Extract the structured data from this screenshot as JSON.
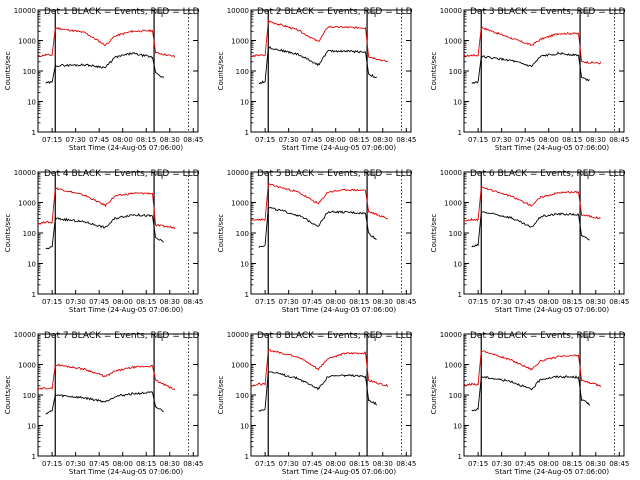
{
  "chart_data": {
    "type": "line",
    "ylabel": "Counts/sec",
    "xlabel": "Start Time (24-Aug-05 07:06:00)",
    "x_ticks": [
      "07:15",
      "07:30",
      "07:45",
      "08:00",
      "08:15",
      "08:30",
      "08:45"
    ],
    "y_scale": "log",
    "ylim": [
      1,
      10000
    ],
    "y_ticks": [
      "1",
      "10",
      "100",
      "1000",
      "10000"
    ],
    "series_colors": {
      "black": "#000000",
      "red": "#e00000"
    },
    "panels": [
      {
        "title": "Det 1  BLACK = Events, RED = LLD",
        "red": [
          [
            0,
            300
          ],
          [
            5,
            340
          ],
          [
            9,
            330
          ],
          [
            11,
            2600
          ],
          [
            30,
            1800
          ],
          [
            43,
            700
          ],
          [
            49,
            1400
          ],
          [
            60,
            2000
          ],
          [
            73,
            2100
          ],
          [
            75,
            400
          ],
          [
            87,
            300
          ]
        ],
        "black": [
          [
            5,
            40
          ],
          [
            9,
            43
          ],
          [
            11,
            150
          ],
          [
            30,
            160
          ],
          [
            43,
            130
          ],
          [
            49,
            280
          ],
          [
            60,
            380
          ],
          [
            73,
            280
          ],
          [
            75,
            90
          ],
          [
            80,
            60
          ]
        ]
      },
      {
        "title": "Det 2  BLACK = Events, RED = LLD",
        "red": [
          [
            0,
            300
          ],
          [
            5,
            330
          ],
          [
            9,
            320
          ],
          [
            11,
            4300
          ],
          [
            30,
            2200
          ],
          [
            43,
            900
          ],
          [
            49,
            2800
          ],
          [
            60,
            2700
          ],
          [
            73,
            2600
          ],
          [
            75,
            300
          ],
          [
            87,
            200
          ]
        ],
        "black": [
          [
            5,
            40
          ],
          [
            9,
            45
          ],
          [
            11,
            600
          ],
          [
            30,
            350
          ],
          [
            43,
            160
          ],
          [
            49,
            450
          ],
          [
            60,
            450
          ],
          [
            73,
            420
          ],
          [
            75,
            80
          ],
          [
            80,
            60
          ]
        ]
      },
      {
        "title": "Det 3  BLACK = Events, RED = LLD",
        "red": [
          [
            0,
            300
          ],
          [
            5,
            330
          ],
          [
            9,
            320
          ],
          [
            11,
            2700
          ],
          [
            30,
            1200
          ],
          [
            43,
            700
          ],
          [
            49,
            1100
          ],
          [
            60,
            1700
          ],
          [
            73,
            1700
          ],
          [
            75,
            200
          ],
          [
            87,
            180
          ]
        ],
        "black": [
          [
            5,
            40
          ],
          [
            9,
            45
          ],
          [
            11,
            300
          ],
          [
            30,
            220
          ],
          [
            43,
            140
          ],
          [
            49,
            300
          ],
          [
            60,
            380
          ],
          [
            73,
            330
          ],
          [
            75,
            60
          ],
          [
            80,
            50
          ]
        ]
      },
      {
        "title": "Det 4  BLACK = Events, RED = LLD",
        "red": [
          [
            0,
            200
          ],
          [
            5,
            230
          ],
          [
            9,
            220
          ],
          [
            11,
            3000
          ],
          [
            30,
            1700
          ],
          [
            43,
            800
          ],
          [
            49,
            1600
          ],
          [
            60,
            2000
          ],
          [
            73,
            2000
          ],
          [
            75,
            180
          ],
          [
            87,
            150
          ]
        ],
        "black": [
          [
            5,
            30
          ],
          [
            9,
            35
          ],
          [
            11,
            300
          ],
          [
            30,
            230
          ],
          [
            43,
            150
          ],
          [
            49,
            300
          ],
          [
            60,
            400
          ],
          [
            73,
            360
          ],
          [
            75,
            70
          ],
          [
            80,
            50
          ]
        ]
      },
      {
        "title": "Det 5  BLACK = Events, RED = LLD",
        "red": [
          [
            0,
            250
          ],
          [
            5,
            280
          ],
          [
            9,
            270
          ],
          [
            11,
            4000
          ],
          [
            30,
            2200
          ],
          [
            43,
            900
          ],
          [
            49,
            2200
          ],
          [
            60,
            2600
          ],
          [
            73,
            2500
          ],
          [
            75,
            500
          ],
          [
            87,
            300
          ]
        ],
        "black": [
          [
            5,
            35
          ],
          [
            9,
            40
          ],
          [
            11,
            700
          ],
          [
            30,
            380
          ],
          [
            43,
            170
          ],
          [
            49,
            500
          ],
          [
            60,
            480
          ],
          [
            73,
            440
          ],
          [
            75,
            100
          ],
          [
            80,
            60
          ]
        ]
      },
      {
        "title": "Det 6  BLACK = Events, RED = LLD",
        "red": [
          [
            0,
            250
          ],
          [
            5,
            280
          ],
          [
            9,
            270
          ],
          [
            11,
            3200
          ],
          [
            30,
            1600
          ],
          [
            43,
            800
          ],
          [
            49,
            1500
          ],
          [
            60,
            2100
          ],
          [
            73,
            2200
          ],
          [
            75,
            400
          ],
          [
            87,
            300
          ]
        ],
        "black": [
          [
            5,
            35
          ],
          [
            9,
            40
          ],
          [
            11,
            500
          ],
          [
            30,
            320
          ],
          [
            43,
            150
          ],
          [
            49,
            350
          ],
          [
            60,
            420
          ],
          [
            73,
            400
          ],
          [
            75,
            80
          ],
          [
            80,
            60
          ]
        ]
      },
      {
        "title": "Det 7  BLACK = Events, RED = LLD",
        "red": [
          [
            0,
            150
          ],
          [
            5,
            170
          ],
          [
            9,
            160
          ],
          [
            11,
            1000
          ],
          [
            30,
            700
          ],
          [
            43,
            400
          ],
          [
            49,
            600
          ],
          [
            60,
            800
          ],
          [
            73,
            900
          ],
          [
            75,
            300
          ],
          [
            87,
            150
          ]
        ],
        "black": [
          [
            5,
            25
          ],
          [
            9,
            30
          ],
          [
            11,
            100
          ],
          [
            30,
            80
          ],
          [
            43,
            60
          ],
          [
            49,
            90
          ],
          [
            60,
            110
          ],
          [
            73,
            120
          ],
          [
            75,
            40
          ],
          [
            80,
            30
          ]
        ]
      },
      {
        "title": "Det 8  BLACK = Events, RED = LLD",
        "red": [
          [
            0,
            200
          ],
          [
            5,
            230
          ],
          [
            9,
            220
          ],
          [
            11,
            3000
          ],
          [
            30,
            1800
          ],
          [
            43,
            700
          ],
          [
            49,
            1600
          ],
          [
            60,
            2300
          ],
          [
            73,
            2400
          ],
          [
            75,
            300
          ],
          [
            87,
            200
          ]
        ],
        "black": [
          [
            5,
            30
          ],
          [
            9,
            35
          ],
          [
            11,
            600
          ],
          [
            30,
            350
          ],
          [
            43,
            160
          ],
          [
            49,
            400
          ],
          [
            60,
            440
          ],
          [
            73,
            400
          ],
          [
            75,
            70
          ],
          [
            80,
            50
          ]
        ]
      },
      {
        "title": "Det 9  BLACK = Events, RED = LLD",
        "red": [
          [
            0,
            200
          ],
          [
            5,
            230
          ],
          [
            9,
            220
          ],
          [
            11,
            2900
          ],
          [
            30,
            1400
          ],
          [
            43,
            700
          ],
          [
            49,
            1300
          ],
          [
            60,
            1800
          ],
          [
            73,
            2000
          ],
          [
            75,
            300
          ],
          [
            87,
            200
          ]
        ],
        "black": [
          [
            5,
            30
          ],
          [
            9,
            35
          ],
          [
            11,
            400
          ],
          [
            30,
            280
          ],
          [
            43,
            150
          ],
          [
            49,
            330
          ],
          [
            60,
            400
          ],
          [
            73,
            380
          ],
          [
            75,
            70
          ],
          [
            80,
            50
          ]
        ]
      }
    ]
  }
}
